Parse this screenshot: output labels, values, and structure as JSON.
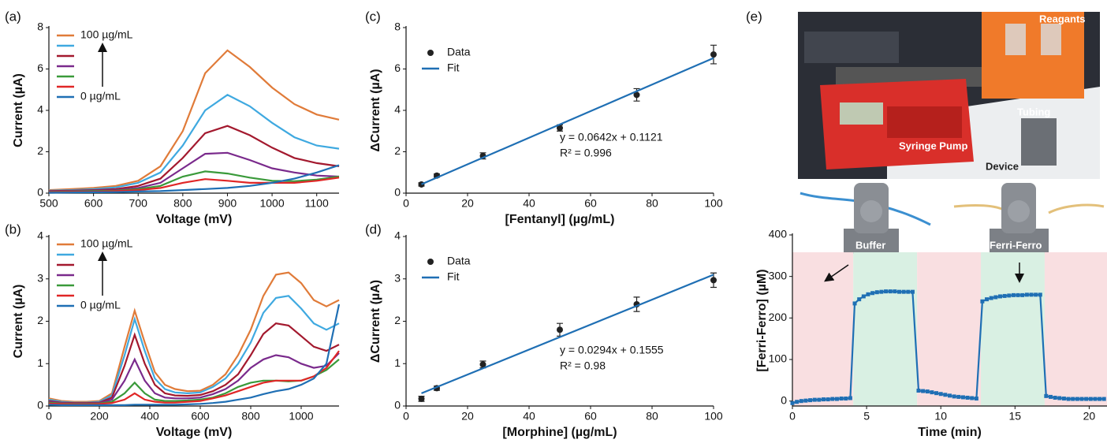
{
  "panel_labels": [
    "(a)",
    "(b)",
    "(c)",
    "(d)",
    "(e)"
  ],
  "photo": {
    "labels": [
      "Reagants",
      "Tubing",
      "Syringe Pump",
      "Device",
      "Buffer",
      "Ferri-Ferro"
    ]
  },
  "chart_data": [
    {
      "type": "line",
      "xlabel": "Voltage (mV)",
      "ylabel": "Current (µA)",
      "legend": "upper left",
      "xlim": [
        500,
        1150
      ],
      "xticks": [
        500,
        600,
        700,
        800,
        900,
        1000,
        1100
      ],
      "ylim": [
        0,
        8
      ],
      "yticks": [
        0,
        2,
        4,
        6,
        8
      ],
      "x": [
        500,
        550,
        600,
        650,
        700,
        750,
        800,
        850,
        900,
        950,
        1000,
        1050,
        1100,
        1150
      ],
      "series": [
        {
          "name": "100  µg/mL",
          "color": "#e07b39",
          "values": [
            0.15,
            0.2,
            0.25,
            0.35,
            0.6,
            1.3,
            3.0,
            5.8,
            6.9,
            6.1,
            5.1,
            4.3,
            3.8,
            3.55
          ]
        },
        {
          "color": "#3fa9e0",
          "values": [
            0.12,
            0.15,
            0.2,
            0.28,
            0.5,
            1.0,
            2.3,
            4.0,
            4.75,
            4.2,
            3.4,
            2.7,
            2.3,
            2.15
          ]
        },
        {
          "color": "#a3192e",
          "values": [
            0.1,
            0.12,
            0.15,
            0.2,
            0.35,
            0.7,
            1.7,
            2.9,
            3.25,
            2.8,
            2.2,
            1.7,
            1.45,
            1.3
          ]
        },
        {
          "color": "#7a2a8c",
          "values": [
            0.08,
            0.1,
            0.12,
            0.15,
            0.25,
            0.5,
            1.2,
            1.9,
            1.95,
            1.6,
            1.2,
            1.0,
            0.85,
            0.8
          ]
        },
        {
          "color": "#3a9a3a",
          "values": [
            0.06,
            0.08,
            0.1,
            0.12,
            0.2,
            0.35,
            0.8,
            1.05,
            0.95,
            0.75,
            0.6,
            0.58,
            0.65,
            0.8
          ]
        },
        {
          "color": "#e02626",
          "values": [
            0.05,
            0.06,
            0.07,
            0.1,
            0.15,
            0.25,
            0.5,
            0.68,
            0.6,
            0.5,
            0.5,
            0.5,
            0.6,
            0.75
          ]
        },
        {
          "name": "0  µg/mL",
          "color": "#1f6fb4",
          "values": [
            0.02,
            0.03,
            0.04,
            0.05,
            0.08,
            0.1,
            0.15,
            0.2,
            0.25,
            0.35,
            0.5,
            0.7,
            1.0,
            1.35
          ]
        }
      ]
    },
    {
      "type": "line",
      "xlabel": "Voltage (mV)",
      "ylabel": "Current (µA)",
      "legend": "upper left",
      "xlim": [
        0,
        1150
      ],
      "xticks": [
        0,
        200,
        400,
        600,
        800,
        1000
      ],
      "ylim": [
        0,
        4
      ],
      "yticks": [
        0,
        1,
        2,
        3,
        4
      ],
      "x": [
        0,
        50,
        100,
        150,
        200,
        250,
        300,
        340,
        380,
        420,
        460,
        500,
        550,
        600,
        650,
        700,
        750,
        800,
        850,
        900,
        950,
        1000,
        1050,
        1100,
        1150
      ],
      "series": [
        {
          "name": "100  µg/mL",
          "color": "#e07b39",
          "values": [
            0.18,
            0.12,
            0.1,
            0.1,
            0.12,
            0.3,
            1.4,
            2.25,
            1.5,
            0.8,
            0.5,
            0.4,
            0.35,
            0.36,
            0.5,
            0.75,
            1.2,
            1.8,
            2.6,
            3.1,
            3.15,
            2.9,
            2.5,
            2.35,
            2.5
          ]
        },
        {
          "color": "#3fa9e0",
          "values": [
            0.15,
            0.1,
            0.08,
            0.08,
            0.1,
            0.25,
            1.2,
            2.05,
            1.3,
            0.65,
            0.4,
            0.32,
            0.3,
            0.32,
            0.45,
            0.65,
            1.0,
            1.5,
            2.2,
            2.55,
            2.6,
            2.3,
            1.95,
            1.8,
            1.95
          ]
        },
        {
          "color": "#a3192e",
          "values": [
            0.12,
            0.08,
            0.07,
            0.07,
            0.08,
            0.2,
            0.95,
            1.68,
            1.0,
            0.5,
            0.3,
            0.25,
            0.24,
            0.26,
            0.35,
            0.5,
            0.75,
            1.2,
            1.7,
            1.95,
            1.9,
            1.65,
            1.4,
            1.3,
            1.45
          ]
        },
        {
          "color": "#7a2a8c",
          "values": [
            0.1,
            0.07,
            0.06,
            0.06,
            0.07,
            0.15,
            0.6,
            1.1,
            0.6,
            0.3,
            0.2,
            0.18,
            0.18,
            0.2,
            0.28,
            0.4,
            0.6,
            0.9,
            1.1,
            1.2,
            1.15,
            1.0,
            0.9,
            0.95,
            1.25
          ]
        },
        {
          "color": "#3a9a3a",
          "values": [
            0.08,
            0.06,
            0.05,
            0.05,
            0.06,
            0.1,
            0.3,
            0.55,
            0.3,
            0.15,
            0.12,
            0.12,
            0.13,
            0.15,
            0.2,
            0.3,
            0.45,
            0.55,
            0.6,
            0.6,
            0.58,
            0.6,
            0.7,
            0.85,
            1.1
          ]
        },
        {
          "color": "#e02626",
          "values": [
            0.06,
            0.05,
            0.04,
            0.04,
            0.05,
            0.07,
            0.15,
            0.3,
            0.15,
            0.1,
            0.08,
            0.08,
            0.1,
            0.12,
            0.18,
            0.25,
            0.35,
            0.45,
            0.55,
            0.6,
            0.6,
            0.6,
            0.7,
            0.9,
            1.3
          ]
        },
        {
          "name": "0  µg/mL",
          "color": "#1f6fb4",
          "values": [
            0.03,
            0.02,
            0.02,
            0.02,
            0.02,
            0.02,
            0.02,
            0.03,
            0.03,
            0.03,
            0.03,
            0.03,
            0.04,
            0.05,
            0.07,
            0.1,
            0.15,
            0.2,
            0.28,
            0.35,
            0.4,
            0.5,
            0.65,
            1.0,
            2.4
          ]
        }
      ]
    },
    {
      "type": "scatter",
      "xlabel": "[Fentanyl] (µg/mL)",
      "ylabel": "ΔCurrent (µA)",
      "legend": "upper left",
      "xlim": [
        0,
        100
      ],
      "xticks": [
        0,
        20,
        40,
        60,
        80,
        100
      ],
      "ylim": [
        0,
        8
      ],
      "yticks": [
        0,
        2,
        4,
        6,
        8
      ],
      "annotations": [
        "y = 0.0642x + 0.1121",
        "R² = 0.996"
      ],
      "series": [
        {
          "name": "Data",
          "color": "#222222",
          "mode": "markers",
          "x": [
            5,
            10,
            25,
            50,
            75,
            100
          ],
          "values": [
            0.42,
            0.85,
            1.8,
            3.15,
            4.75,
            6.7
          ],
          "errors": [
            0.08,
            0.08,
            0.15,
            0.15,
            0.3,
            0.45
          ]
        },
        {
          "name": "Fit",
          "color": "#1f6fb4",
          "mode": "line",
          "x": [
            5,
            100
          ],
          "values": [
            0.43,
            6.53
          ]
        }
      ]
    },
    {
      "type": "scatter",
      "xlabel": "[Morphine] (µg/mL)",
      "ylabel": "ΔCurrent (µA)",
      "legend": "upper left",
      "xlim": [
        0,
        100
      ],
      "xticks": [
        0,
        20,
        40,
        60,
        80,
        100
      ],
      "ylim": [
        0,
        4
      ],
      "yticks": [
        0,
        1,
        2,
        3,
        4
      ],
      "annotations": [
        "y = 0.0294x + 0.1555",
        "R² = 0.98"
      ],
      "series": [
        {
          "name": "Data",
          "color": "#222222",
          "mode": "markers",
          "x": [
            5,
            10,
            25,
            50,
            75,
            100
          ],
          "values": [
            0.17,
            0.42,
            0.98,
            1.8,
            2.4,
            2.97
          ],
          "errors": [
            0.06,
            0.05,
            0.08,
            0.15,
            0.17,
            0.17
          ]
        },
        {
          "name": "Fit",
          "color": "#1f6fb4",
          "mode": "line",
          "x": [
            5,
            100
          ],
          "values": [
            0.3,
            3.1
          ]
        }
      ]
    },
    {
      "type": "line",
      "xlabel": "Time (min)",
      "ylabel": "[Ferri-Ferro] (µM)",
      "xlim": [
        0,
        21.2
      ],
      "xticks": [
        0,
        5,
        10,
        15,
        20
      ],
      "ylim": [
        -12,
        400
      ],
      "yticks": [
        0,
        100,
        200,
        300,
        400
      ],
      "regions": [
        {
          "start": 0,
          "end": 4.1,
          "color": "#f9dfe1"
        },
        {
          "start": 4.1,
          "end": 8.4,
          "color": "#d9f0e3"
        },
        {
          "start": 8.4,
          "end": 12.7,
          "color": "#f9dfe1"
        },
        {
          "start": 12.7,
          "end": 17,
          "color": "#d9f0e3"
        },
        {
          "start": 17,
          "end": 21.2,
          "color": "#f9dfe1"
        }
      ],
      "series": [
        {
          "color": "#1f6fb4",
          "mode": "line+markers",
          "marker": "square",
          "x": [
            0,
            0.3,
            0.6,
            0.9,
            1.2,
            1.5,
            1.8,
            2.1,
            2.4,
            2.7,
            3.0,
            3.3,
            3.6,
            3.9,
            4.2,
            4.5,
            4.8,
            5.1,
            5.4,
            5.7,
            6.0,
            6.3,
            6.6,
            6.9,
            7.2,
            7.5,
            7.8,
            8.1,
            8.5,
            8.8,
            9.1,
            9.4,
            9.7,
            10.0,
            10.3,
            10.6,
            10.9,
            11.2,
            11.5,
            11.8,
            12.1,
            12.4,
            12.8,
            13.1,
            13.4,
            13.7,
            14.0,
            14.3,
            14.6,
            14.9,
            15.2,
            15.5,
            15.8,
            16.1,
            16.4,
            16.7,
            17.1,
            17.4,
            17.7,
            18.0,
            18.3,
            18.6,
            18.9,
            19.2,
            19.5,
            19.8,
            20.1,
            20.4,
            20.7,
            21.0
          ],
          "values": [
            -5,
            -2,
            0,
            1,
            2,
            3,
            3,
            4,
            4,
            5,
            5,
            6,
            6,
            7,
            235,
            245,
            252,
            257,
            260,
            262,
            263,
            264,
            264,
            264,
            263,
            263,
            263,
            263,
            25,
            24,
            23,
            21,
            19,
            17,
            15,
            13,
            11,
            10,
            9,
            8,
            7,
            6,
            240,
            245,
            248,
            250,
            252,
            253,
            254,
            255,
            255,
            255,
            256,
            256,
            256,
            256,
            12,
            10,
            8,
            7,
            6,
            5,
            5,
            5,
            5,
            5,
            5,
            5,
            5,
            5
          ]
        }
      ]
    }
  ]
}
